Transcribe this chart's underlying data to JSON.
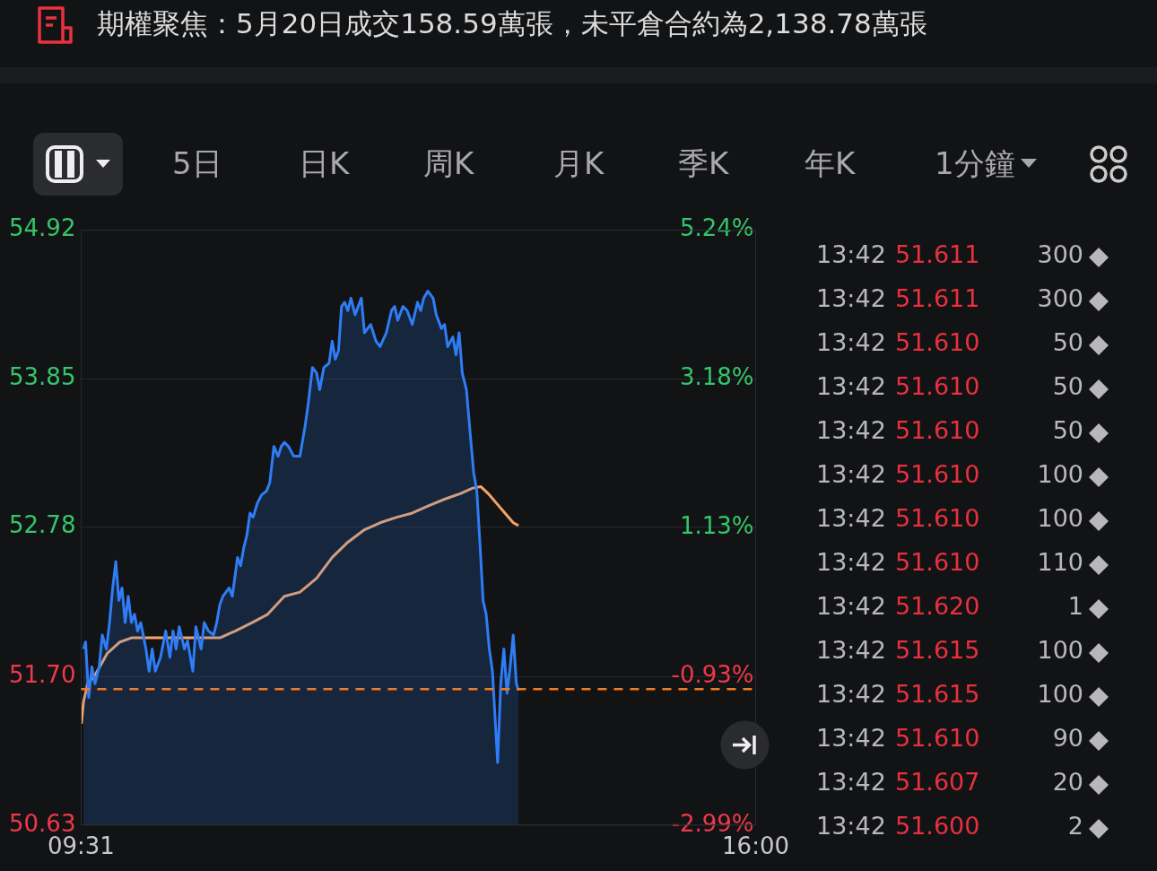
{
  "chart_data": {
    "type": "line",
    "title": "期權聚焦：5月20日成交158.59萬張，未平倉合約為2,138.78萬張",
    "xlim": [
      9.5167,
      16
    ],
    "xticks": [
      {
        "value": 9.5167,
        "label": "09:31"
      },
      {
        "value": 16,
        "label": "16:00"
      }
    ],
    "ylim": [
      50.63,
      54.92
    ],
    "yticks": [
      50.63,
      {
        "value": 51.7,
        "label": "51.70"
      },
      52.78,
      53.85,
      54.92
    ],
    "y2lim": [
      -2.99,
      5.24
    ],
    "y2ticks": [
      {
        "value": -2.99,
        "label": "-2.99%"
      },
      {
        "value": -0.93,
        "label": "-0.93%"
      },
      {
        "value": 1.13,
        "label": "1.13%"
      },
      {
        "value": 3.18,
        "label": "3.18%"
      },
      {
        "value": 5.24,
        "label": "5.24%"
      }
    ],
    "grid": "y",
    "legend": false,
    "ref_lines": [
      {
        "axis": "y",
        "value": 51.61,
        "color": "#f07a22",
        "line_style": "dashed"
      }
    ],
    "series": [
      {
        "type": "area",
        "color": "#2f7df6",
        "x": [
          9.54,
          9.56,
          9.59,
          9.62,
          9.65,
          9.69,
          9.72,
          9.76,
          9.79,
          9.82,
          9.85,
          9.88,
          9.91,
          9.94,
          9.97,
          10.0,
          10.03,
          10.06,
          10.09,
          10.14,
          10.17,
          10.2,
          10.23,
          10.28,
          10.33,
          10.37,
          10.4,
          10.43,
          10.46,
          10.51,
          10.54,
          10.59,
          10.62,
          10.67,
          10.7,
          10.74,
          10.79,
          10.82,
          10.85,
          10.88,
          10.94,
          10.97,
          11.02,
          11.05,
          11.08,
          11.11,
          11.14,
          11.17,
          11.21,
          11.25,
          11.3,
          11.33,
          11.37,
          11.41,
          11.44,
          11.47,
          11.51,
          11.56,
          11.62,
          11.67,
          11.7,
          11.74,
          11.78,
          11.81,
          11.85,
          11.9,
          11.93,
          11.96,
          11.99,
          12.02,
          12.05,
          12.08,
          12.11,
          12.15,
          12.18,
          12.21,
          12.24,
          12.3,
          12.35,
          12.39,
          12.45,
          12.5,
          12.53,
          12.56,
          12.61,
          12.65,
          12.7,
          12.75,
          12.78,
          12.81,
          12.85,
          12.9,
          12.93,
          12.98,
          13.01,
          13.04,
          13.09,
          13.12,
          13.15,
          13.18,
          13.22,
          13.26,
          13.29,
          13.32,
          13.35,
          13.38,
          13.41,
          13.44,
          13.47,
          13.52,
          13.55,
          13.58,
          13.61,
          13.64,
          13.67,
          13.7,
          13.72
        ],
        "values": [
          51.9,
          51.95,
          51.55,
          51.77,
          51.65,
          51.77,
          52.0,
          51.9,
          52.09,
          52.34,
          52.53,
          52.25,
          52.34,
          52.09,
          52.28,
          52.09,
          52.15,
          52.03,
          52.09,
          51.9,
          51.74,
          51.9,
          51.74,
          51.84,
          52.03,
          51.84,
          52.03,
          51.9,
          52.06,
          51.9,
          51.96,
          51.74,
          52.06,
          51.9,
          52.09,
          52.03,
          52.0,
          52.09,
          52.22,
          52.28,
          52.34,
          52.28,
          52.56,
          52.5,
          52.63,
          52.72,
          52.88,
          52.85,
          52.95,
          53.01,
          53.04,
          53.1,
          53.36,
          53.29,
          53.36,
          53.39,
          53.36,
          53.29,
          53.29,
          53.51,
          53.67,
          53.93,
          53.89,
          53.77,
          53.93,
          53.96,
          54.12,
          53.99,
          54.05,
          54.37,
          54.4,
          54.34,
          54.43,
          54.31,
          54.37,
          54.43,
          54.18,
          54.24,
          54.12,
          54.08,
          54.18,
          54.34,
          54.37,
          54.27,
          54.37,
          54.34,
          54.24,
          54.4,
          54.34,
          54.43,
          54.48,
          54.43,
          54.31,
          54.21,
          54.24,
          54.08,
          54.15,
          54.02,
          54.18,
          53.89,
          53.77,
          53.42,
          53.17,
          53.04,
          52.66,
          52.25,
          52.15,
          51.9,
          51.74,
          51.08,
          51.65,
          51.9,
          51.58,
          51.77,
          52.0,
          51.65,
          51.6
        ]
      },
      {
        "type": "line",
        "color": "#f5a468",
        "x": [
          9.52,
          9.54,
          9.58,
          9.65,
          9.77,
          9.89,
          10.0,
          10.39,
          10.85,
          11.0,
          11.16,
          11.31,
          11.47,
          11.62,
          11.78,
          11.93,
          12.08,
          12.24,
          12.39,
          12.55,
          12.7,
          12.85,
          13.01,
          13.16,
          13.28,
          13.36,
          13.43,
          13.51,
          13.59,
          13.67,
          13.72
        ],
        "values": [
          51.36,
          51.52,
          51.65,
          51.71,
          51.87,
          51.95,
          51.98,
          51.98,
          51.98,
          52.03,
          52.09,
          52.15,
          52.28,
          52.31,
          52.41,
          52.56,
          52.67,
          52.76,
          52.81,
          52.85,
          52.88,
          52.93,
          52.98,
          53.02,
          53.06,
          53.07,
          53.02,
          52.95,
          52.88,
          52.81,
          52.79
        ]
      }
    ],
    "annotations": [
      "5日",
      "日K",
      "周K",
      "月K",
      "季K",
      "年K",
      "1分鐘",
      "13:42 51.611 300",
      "13:42 51.611 300",
      "13:42 51.610 50",
      "13:42 51.610 50",
      "13:42 51.610 50",
      "13:42 51.610 100",
      "13:42 51.610 100",
      "13:42 51.610 110",
      "13:42 51.620 1",
      "13:42 51.615 100",
      "13:42 51.615 100",
      "13:42 51.610 90",
      "13:42 51.607 20",
      "13:42 51.600 2"
    ]
  }
}
